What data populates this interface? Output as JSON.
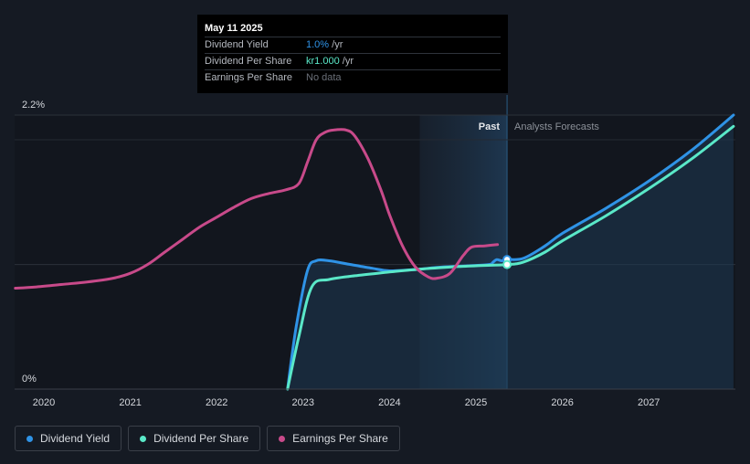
{
  "tooltip": {
    "date": "May 11 2025",
    "rows": [
      {
        "label": "Dividend Yield",
        "value": "1.0%",
        "unit": " /yr"
      },
      {
        "label": "Dividend Per Share",
        "value": "kr1.000",
        "unit": " /yr"
      },
      {
        "label": "Earnings Per Share",
        "value": "No data",
        "unit": ""
      }
    ]
  },
  "labels": {
    "past": "Past",
    "forecast": "Analysts Forecasts"
  },
  "legend": [
    {
      "label": "Dividend Yield",
      "color": "#2f93e6"
    },
    {
      "label": "Dividend Per Share",
      "color": "#5ae8c8"
    },
    {
      "label": "Earnings Per Share",
      "color": "#c84a8a"
    }
  ],
  "colors": {
    "background": "#151a23",
    "yield": "#2f93e6",
    "dps": "#5ae8c8",
    "eps": "#c84a8a"
  },
  "chart_data": {
    "type": "line",
    "title": "",
    "xlabel": "",
    "ylabel": "",
    "xlim": [
      2019.67,
      2027.98
    ],
    "ylim": [
      0,
      2.2
    ],
    "y_ticks": [
      "0%",
      "2.2%"
    ],
    "x_ticks": [
      2020,
      2021,
      2022,
      2023,
      2024,
      2025,
      2026,
      2027
    ],
    "gridlines_y": [
      0,
      1.0,
      2.2
    ],
    "past_region": [
      2024.35,
      2025.36
    ],
    "now": 2025.36,
    "series": [
      {
        "name": "Dividend Yield",
        "color": "#2f93e6",
        "points": [
          [
            2022.82,
            0.0
          ],
          [
            2022.92,
            0.5
          ],
          [
            2023.05,
            0.95
          ],
          [
            2023.15,
            1.03
          ],
          [
            2023.3,
            1.03
          ],
          [
            2023.55,
            1.0
          ],
          [
            2023.8,
            0.97
          ],
          [
            2024.0,
            0.95
          ],
          [
            2024.3,
            0.96
          ],
          [
            2024.6,
            0.98
          ],
          [
            2024.9,
            0.99
          ],
          [
            2025.15,
            1.0
          ],
          [
            2025.2,
            1.02
          ],
          [
            2025.24,
            1.04
          ],
          [
            2025.3,
            1.03
          ],
          [
            2025.36,
            1.04
          ],
          [
            2025.55,
            1.05
          ],
          [
            2025.8,
            1.15
          ],
          [
            2026.0,
            1.25
          ],
          [
            2026.5,
            1.45
          ],
          [
            2027.0,
            1.67
          ],
          [
            2027.5,
            1.92
          ],
          [
            2027.98,
            2.2
          ]
        ],
        "markers": [
          [
            2025.36,
            1.04
          ]
        ]
      },
      {
        "name": "Dividend Per Share",
        "color": "#5ae8c8",
        "points": [
          [
            2022.82,
            0.0
          ],
          [
            2022.95,
            0.42
          ],
          [
            2023.1,
            0.82
          ],
          [
            2023.3,
            0.88
          ],
          [
            2023.6,
            0.91
          ],
          [
            2024.0,
            0.94
          ],
          [
            2024.3,
            0.96
          ],
          [
            2024.7,
            0.98
          ],
          [
            2025.0,
            0.99
          ],
          [
            2025.36,
            1.0
          ],
          [
            2025.55,
            1.02
          ],
          [
            2025.8,
            1.1
          ],
          [
            2026.0,
            1.19
          ],
          [
            2026.5,
            1.39
          ],
          [
            2027.0,
            1.61
          ],
          [
            2027.5,
            1.85
          ],
          [
            2027.98,
            2.11
          ]
        ],
        "markers": [
          [
            2025.36,
            1.0
          ]
        ]
      },
      {
        "name": "Earnings Per Share",
        "color": "#c84a8a",
        "points": [
          [
            2019.67,
            0.81
          ],
          [
            2019.9,
            0.82
          ],
          [
            2020.2,
            0.84
          ],
          [
            2020.5,
            0.86
          ],
          [
            2020.8,
            0.89
          ],
          [
            2021.0,
            0.93
          ],
          [
            2021.2,
            1.0
          ],
          [
            2021.4,
            1.1
          ],
          [
            2021.6,
            1.2
          ],
          [
            2021.8,
            1.3
          ],
          [
            2022.0,
            1.38
          ],
          [
            2022.2,
            1.46
          ],
          [
            2022.4,
            1.53
          ],
          [
            2022.6,
            1.57
          ],
          [
            2022.8,
            1.6
          ],
          [
            2022.95,
            1.65
          ],
          [
            2023.05,
            1.82
          ],
          [
            2023.15,
            2.0
          ],
          [
            2023.25,
            2.06
          ],
          [
            2023.35,
            2.08
          ],
          [
            2023.5,
            2.08
          ],
          [
            2023.6,
            2.03
          ],
          [
            2023.75,
            1.85
          ],
          [
            2023.9,
            1.6
          ],
          [
            2024.0,
            1.4
          ],
          [
            2024.15,
            1.15
          ],
          [
            2024.3,
            0.98
          ],
          [
            2024.45,
            0.9
          ],
          [
            2024.55,
            0.89
          ],
          [
            2024.7,
            0.93
          ],
          [
            2024.85,
            1.07
          ],
          [
            2024.95,
            1.14
          ],
          [
            2025.1,
            1.15
          ],
          [
            2025.25,
            1.16
          ]
        ],
        "markers": []
      }
    ]
  }
}
